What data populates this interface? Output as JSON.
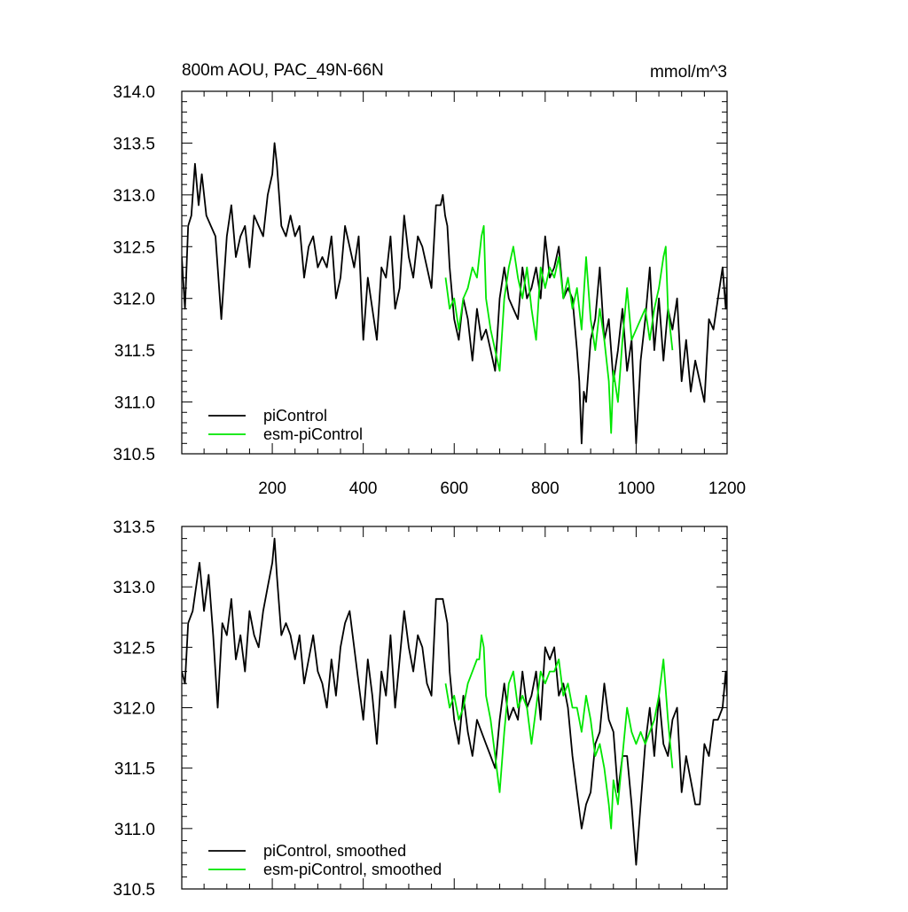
{
  "chart_data": [
    {
      "type": "line",
      "title": "800m AOU, PAC_49N-66N",
      "units": "mmol/m^3",
      "xlabel": "",
      "ylabel": "",
      "xlim": [
        1,
        1200
      ],
      "ylim": [
        310.5,
        314.0
      ],
      "xticks": [
        200,
        400,
        600,
        800,
        1000,
        1200
      ],
      "xtick_labels": [
        "200",
        "400",
        "600",
        "800",
        "1000",
        "1200"
      ],
      "yticks": [
        310.5,
        311.0,
        311.5,
        312.0,
        312.5,
        313.0,
        313.5,
        314.0
      ],
      "ytick_labels": [
        "310.5",
        "311.0",
        "311.5",
        "312.0",
        "312.5",
        "313.0",
        "313.5",
        "314.0"
      ],
      "grid": false,
      "legend_position": "bottom-left",
      "series": [
        {
          "name": "piControl",
          "color": "#000000",
          "x": [
            1,
            8,
            15,
            22,
            30,
            38,
            45,
            55,
            65,
            75,
            88,
            100,
            110,
            120,
            130,
            140,
            150,
            160,
            170,
            180,
            190,
            200,
            205,
            210,
            220,
            230,
            240,
            250,
            260,
            270,
            280,
            290,
            300,
            310,
            320,
            330,
            340,
            350,
            360,
            370,
            380,
            390,
            400,
            410,
            420,
            430,
            440,
            450,
            460,
            470,
            480,
            490,
            500,
            510,
            520,
            530,
            540,
            550,
            560,
            570,
            575,
            580,
            585,
            590,
            600,
            610,
            620,
            630,
            640,
            650,
            660,
            670,
            680,
            690,
            700,
            710,
            720,
            730,
            740,
            750,
            760,
            770,
            780,
            790,
            800,
            810,
            820,
            830,
            840,
            850,
            860,
            870,
            875,
            880,
            885,
            890,
            900,
            910,
            920,
            930,
            940,
            950,
            960,
            970,
            980,
            990,
            1000,
            1010,
            1020,
            1030,
            1040,
            1050,
            1060,
            1070,
            1080,
            1090,
            1100,
            1110,
            1120,
            1130,
            1140,
            1150,
            1160,
            1170,
            1180,
            1190,
            1197,
            1200
          ],
          "values": [
            312.4,
            311.9,
            312.7,
            312.8,
            313.3,
            312.9,
            313.2,
            312.8,
            312.7,
            312.6,
            311.8,
            312.6,
            312.9,
            312.4,
            312.6,
            312.7,
            312.3,
            312.8,
            312.7,
            312.6,
            313.0,
            313.2,
            313.5,
            313.3,
            312.7,
            312.6,
            312.8,
            312.6,
            312.7,
            312.2,
            312.5,
            312.6,
            312.3,
            312.4,
            312.3,
            312.6,
            312.0,
            312.2,
            312.7,
            312.5,
            312.3,
            312.6,
            311.6,
            312.2,
            311.9,
            311.6,
            312.3,
            312.2,
            312.6,
            311.9,
            312.1,
            312.8,
            312.4,
            312.2,
            312.6,
            312.5,
            312.3,
            312.1,
            312.9,
            312.9,
            313.0,
            312.8,
            312.7,
            312.3,
            311.8,
            311.6,
            312.0,
            311.8,
            311.4,
            311.9,
            311.6,
            311.7,
            311.5,
            311.3,
            312.0,
            312.3,
            312.0,
            311.9,
            311.8,
            312.3,
            312.0,
            312.1,
            312.3,
            312.0,
            312.6,
            312.2,
            312.3,
            312.5,
            312.0,
            312.1,
            312.0,
            311.5,
            311.2,
            310.6,
            311.1,
            311.0,
            311.6,
            311.8,
            312.3,
            311.6,
            311.8,
            311.2,
            311.5,
            311.9,
            311.3,
            311.6,
            310.6,
            311.4,
            311.8,
            312.3,
            311.5,
            312.0,
            311.4,
            311.9,
            311.7,
            312.0,
            311.2,
            311.6,
            311.1,
            311.4,
            311.2,
            311.0,
            311.8,
            311.7,
            312.0,
            312.3,
            311.9,
            312.2
          ]
        },
        {
          "name": "esm-piControl",
          "color": "#00e600",
          "x": [
            581,
            590,
            600,
            610,
            620,
            630,
            640,
            650,
            660,
            665,
            670,
            680,
            690,
            700,
            710,
            720,
            730,
            740,
            750,
            760,
            770,
            780,
            790,
            800,
            810,
            820,
            830,
            840,
            850,
            860,
            870,
            880,
            890,
            900,
            910,
            920,
            930,
            940,
            945,
            950,
            960,
            970,
            980,
            990,
            1000,
            1010,
            1020,
            1030,
            1040,
            1050,
            1060,
            1065,
            1070,
            1080
          ],
          "values": [
            312.2,
            311.9,
            312.0,
            311.7,
            312.0,
            312.1,
            312.3,
            312.2,
            312.6,
            312.7,
            312.0,
            311.7,
            311.5,
            311.3,
            312.0,
            312.3,
            312.5,
            312.2,
            312.0,
            312.3,
            311.9,
            311.6,
            312.3,
            312.1,
            312.3,
            312.2,
            312.4,
            312.0,
            312.2,
            311.9,
            312.1,
            311.7,
            312.4,
            311.8,
            311.5,
            311.9,
            311.6,
            311.2,
            310.7,
            311.3,
            311.0,
            311.6,
            312.1,
            311.6,
            311.7,
            311.8,
            311.9,
            311.6,
            311.9,
            312.1,
            312.4,
            312.5,
            311.9,
            311.5
          ]
        }
      ]
    },
    {
      "type": "line",
      "title": "",
      "xlabel": "",
      "ylabel": "",
      "xlim": [
        1,
        1200
      ],
      "ylim": [
        310.5,
        313.5
      ],
      "yticks": [
        310.5,
        311.0,
        311.5,
        312.0,
        312.5,
        313.0,
        313.5
      ],
      "ytick_labels": [
        "310.5",
        "311.0",
        "311.5",
        "312.0",
        "312.5",
        "313.0",
        "313.5"
      ],
      "grid": false,
      "legend_position": "bottom-left",
      "series": [
        {
          "name": "piControl, smoothed",
          "color": "#000000",
          "x": [
            1,
            8,
            15,
            25,
            40,
            50,
            60,
            70,
            80,
            90,
            100,
            110,
            120,
            130,
            140,
            150,
            160,
            170,
            180,
            190,
            200,
            205,
            210,
            220,
            230,
            240,
            250,
            260,
            270,
            280,
            290,
            300,
            310,
            320,
            330,
            340,
            350,
            360,
            370,
            380,
            390,
            400,
            410,
            420,
            430,
            440,
            450,
            460,
            470,
            480,
            490,
            500,
            510,
            520,
            530,
            540,
            550,
            560,
            570,
            575,
            580,
            585,
            590,
            600,
            610,
            620,
            630,
            640,
            650,
            660,
            670,
            680,
            690,
            700,
            710,
            720,
            730,
            740,
            750,
            760,
            770,
            780,
            790,
            800,
            810,
            820,
            830,
            840,
            850,
            860,
            870,
            880,
            890,
            900,
            910,
            920,
            930,
            940,
            950,
            960,
            970,
            980,
            990,
            1000,
            1010,
            1020,
            1030,
            1040,
            1050,
            1060,
            1070,
            1080,
            1090,
            1100,
            1110,
            1120,
            1130,
            1140,
            1150,
            1160,
            1170,
            1180,
            1190,
            1197,
            1200
          ],
          "values": [
            312.3,
            312.2,
            312.7,
            312.8,
            313.2,
            312.8,
            313.1,
            312.6,
            312.0,
            312.7,
            312.6,
            312.9,
            312.4,
            312.6,
            312.3,
            312.8,
            312.6,
            312.5,
            312.8,
            313.0,
            313.2,
            313.4,
            313.1,
            312.6,
            312.7,
            312.6,
            312.4,
            312.6,
            312.2,
            312.4,
            312.6,
            312.3,
            312.2,
            312.0,
            312.4,
            312.1,
            312.5,
            312.7,
            312.8,
            312.5,
            312.2,
            311.9,
            312.4,
            312.1,
            311.7,
            312.3,
            312.1,
            312.6,
            312.0,
            312.4,
            312.8,
            312.5,
            312.3,
            312.6,
            312.5,
            312.2,
            312.1,
            312.9,
            312.9,
            312.9,
            312.8,
            312.7,
            312.3,
            311.9,
            311.7,
            312.1,
            311.8,
            311.6,
            311.9,
            311.8,
            311.7,
            311.6,
            311.5,
            311.9,
            312.2,
            311.9,
            312.0,
            311.9,
            312.3,
            312.0,
            312.1,
            312.3,
            311.9,
            312.5,
            312.4,
            312.5,
            312.1,
            312.2,
            312.0,
            311.6,
            311.3,
            311.0,
            311.2,
            311.3,
            311.7,
            311.8,
            312.2,
            311.9,
            311.8,
            311.3,
            311.6,
            311.6,
            311.2,
            310.7,
            311.2,
            311.7,
            312.0,
            311.6,
            312.1,
            311.7,
            311.6,
            311.9,
            312.0,
            311.3,
            311.6,
            311.4,
            311.2,
            311.2,
            311.7,
            311.6,
            311.9,
            311.9,
            312.0,
            312.3,
            312.1
          ]
        },
        {
          "name": "esm-piControl, smoothed",
          "color": "#00e600",
          "x": [
            581,
            590,
            600,
            610,
            620,
            630,
            640,
            650,
            655,
            660,
            665,
            670,
            680,
            690,
            700,
            710,
            720,
            730,
            740,
            750,
            760,
            770,
            780,
            790,
            800,
            810,
            820,
            830,
            840,
            850,
            860,
            870,
            880,
            890,
            900,
            910,
            920,
            930,
            940,
            945,
            950,
            960,
            970,
            980,
            990,
            1000,
            1010,
            1020,
            1030,
            1040,
            1050,
            1060,
            1070,
            1080
          ],
          "values": [
            312.2,
            312.0,
            312.1,
            311.9,
            312.0,
            312.2,
            312.3,
            312.4,
            312.4,
            312.6,
            312.5,
            312.1,
            311.9,
            311.6,
            311.3,
            311.8,
            312.2,
            312.3,
            312.0,
            312.1,
            312.0,
            311.7,
            312.0,
            312.3,
            312.2,
            312.3,
            312.3,
            312.4,
            312.1,
            312.2,
            312.0,
            312.0,
            311.8,
            312.1,
            311.9,
            311.6,
            311.7,
            311.5,
            311.2,
            311.0,
            311.4,
            311.2,
            311.6,
            312.0,
            311.8,
            311.7,
            311.8,
            311.7,
            311.8,
            311.9,
            312.1,
            312.4,
            311.9,
            311.5
          ]
        }
      ]
    }
  ]
}
